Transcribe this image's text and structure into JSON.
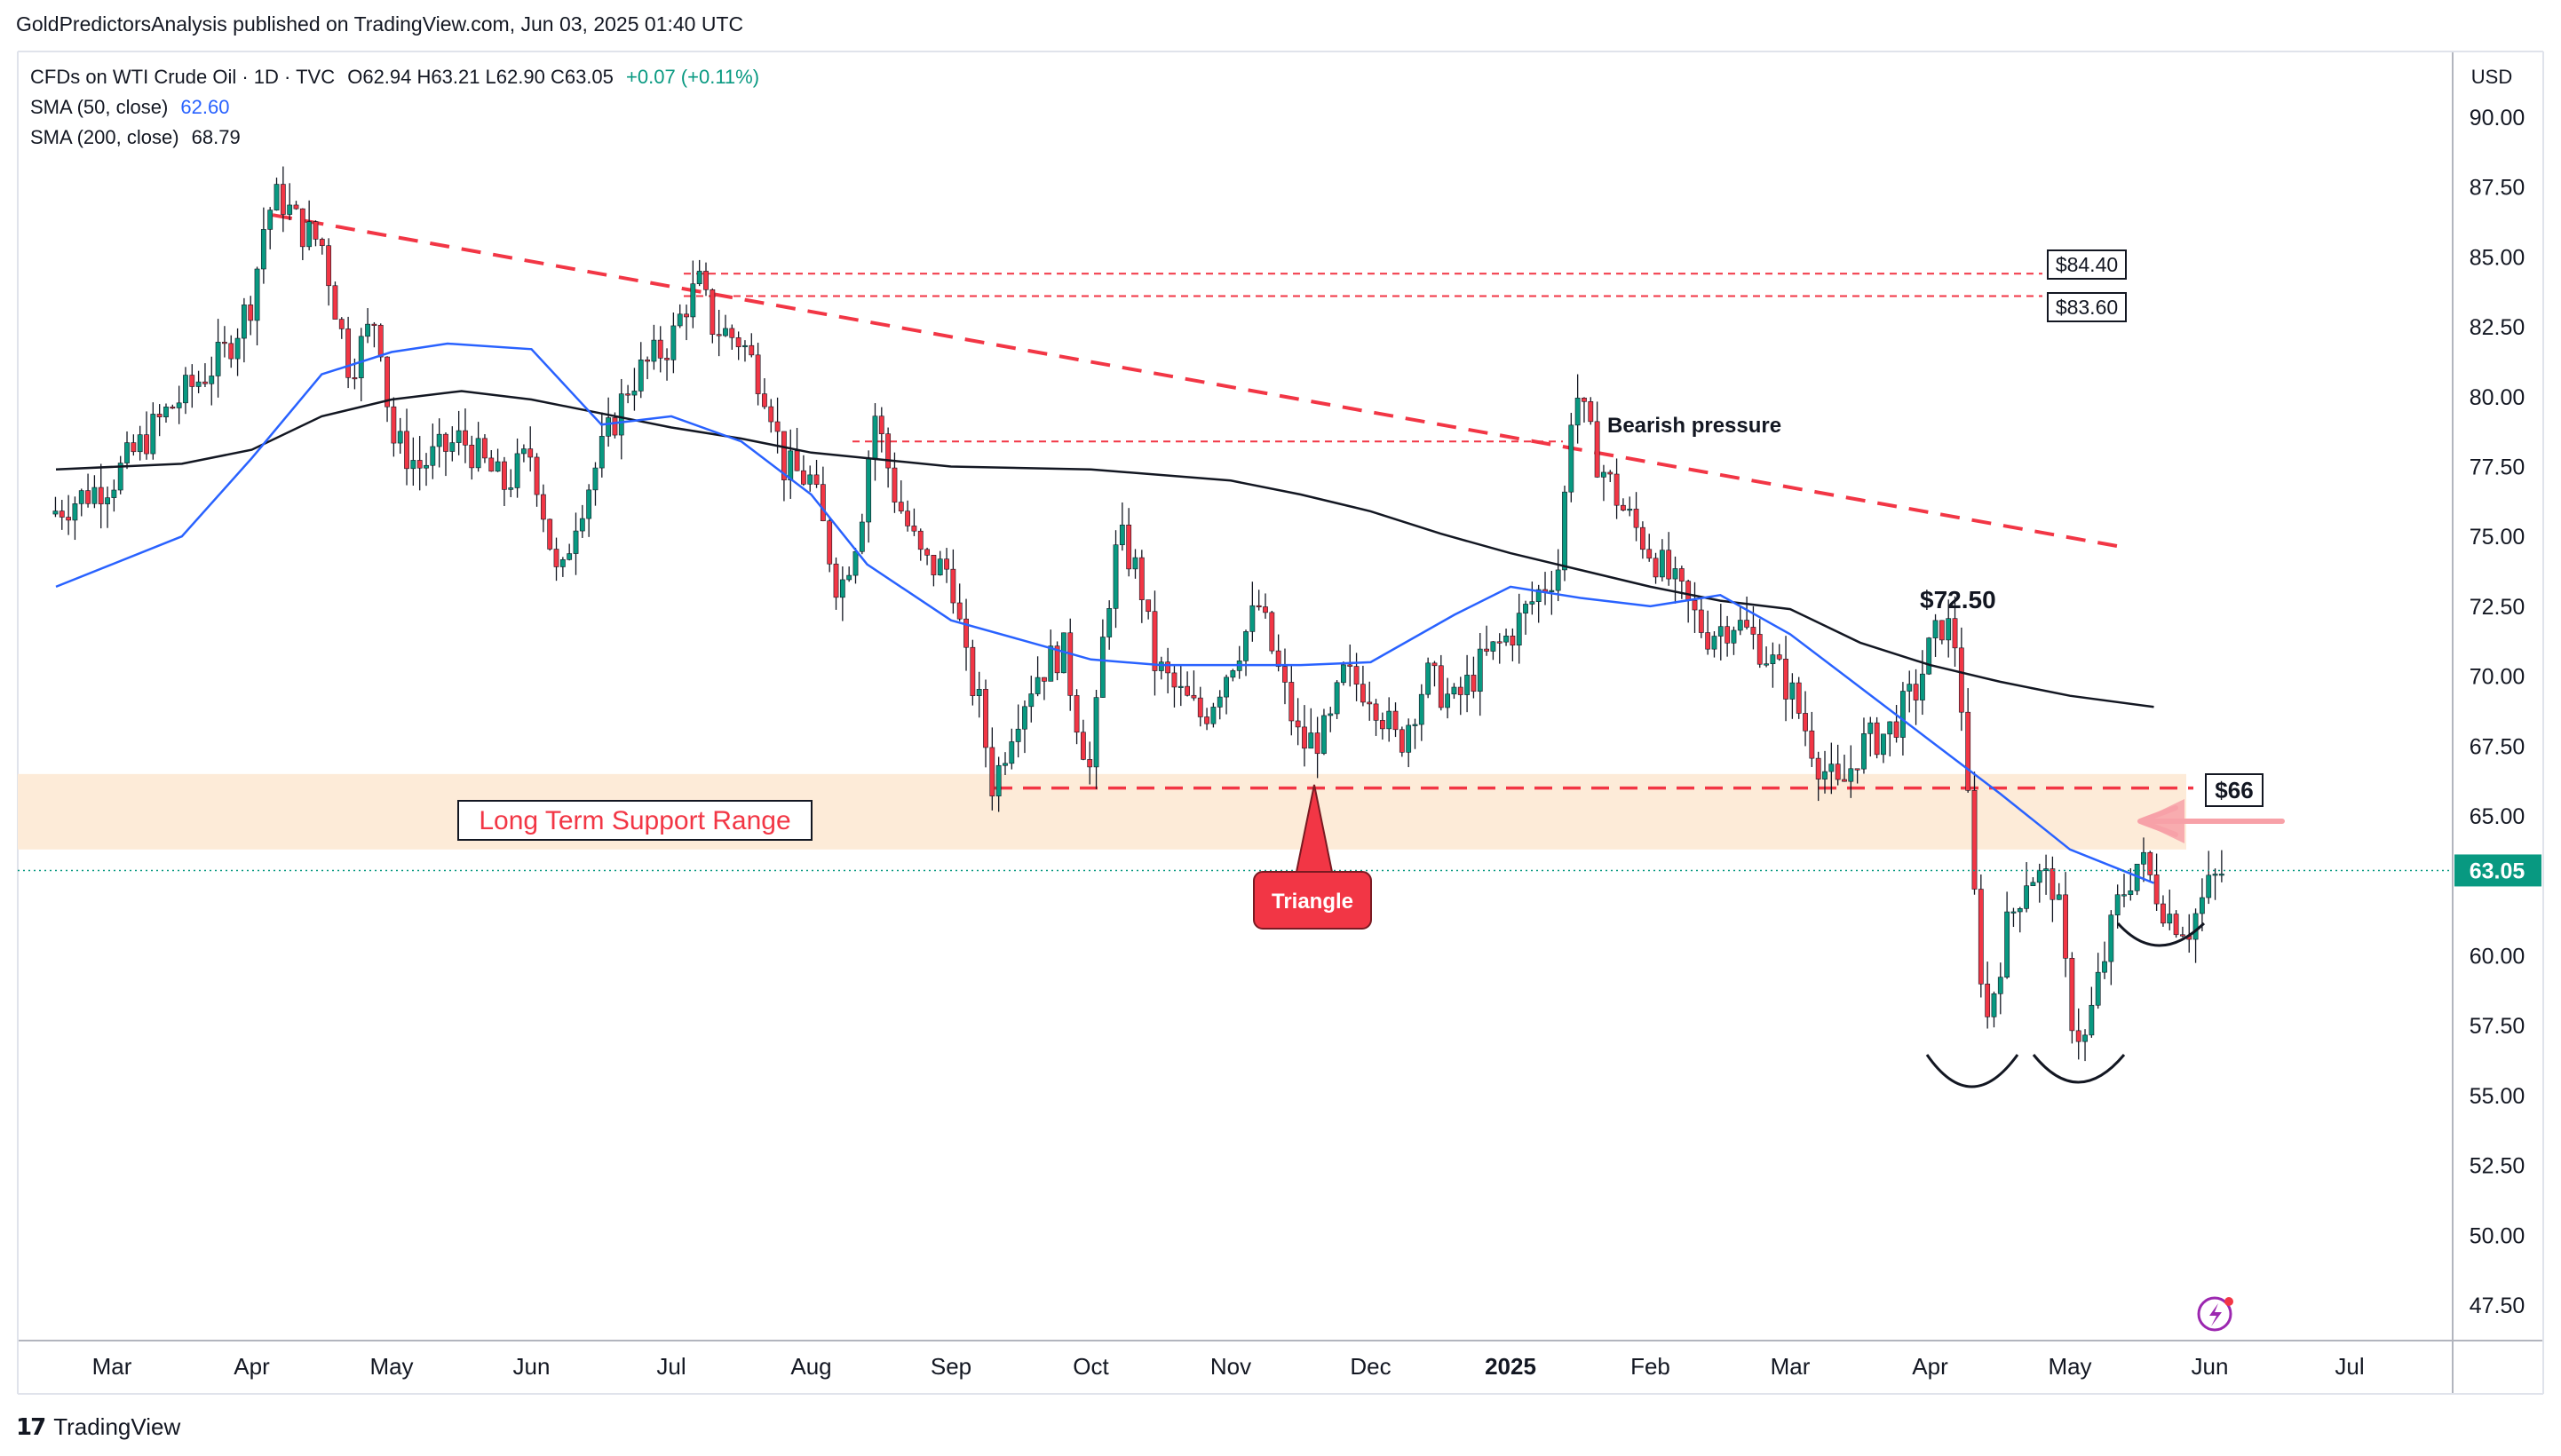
{
  "header": {
    "publisher_line": "GoldPredictorsAnalysis published on TradingView.com, Jun 03, 2025 01:40 UTC"
  },
  "legend": {
    "symbol": "CFDs on WTI Crude Oil · 1D · TVC",
    "ohlc": "O62.94  H63.21  L62.90  C63.05",
    "change": "+0.07 (+0.11%)",
    "sma50_label": "SMA (50, close)",
    "sma50_value": "62.60",
    "sma200_label": "SMA (200, close)",
    "sma200_value": "68.79"
  },
  "price_axis": {
    "currency": "USD",
    "last_price": "63.05",
    "ticks": [
      "90.00",
      "87.50",
      "85.00",
      "82.50",
      "80.00",
      "77.50",
      "75.00",
      "72.50",
      "70.00",
      "67.50",
      "65.00",
      "62.50",
      "60.00",
      "57.50",
      "55.00",
      "52.50",
      "50.00",
      "47.50"
    ]
  },
  "time_axis": {
    "labels": [
      "Mar",
      "Apr",
      "May",
      "Jun",
      "Jul",
      "Aug",
      "Sep",
      "Oct",
      "Nov",
      "Dec",
      "2025",
      "Feb",
      "Mar",
      "Apr",
      "May",
      "Jun",
      "Jul"
    ]
  },
  "annotations": {
    "support_range": "Long Term Support Range",
    "triangle": "Triangle",
    "bearish": "Bearish pressure",
    "level_7250": "$72.50",
    "level_8440": "$84.40",
    "level_8360": "$83.60",
    "level_66": "$66"
  },
  "colors": {
    "up": "#089981",
    "down": "#f23645",
    "sma50": "#2962ff",
    "sma200": "#131722",
    "trend_red": "#f23645",
    "support_band": "#fdebd8",
    "triangle_fill": "#f23645"
  },
  "footer": {
    "brand": "TradingView"
  },
  "chart_data": {
    "type": "candlestick",
    "symbol": "CFDs on WTI Crude Oil",
    "timeframe": "1D",
    "ylim": [
      46.5,
      91.0
    ],
    "last_close": 63.05,
    "x_unit": "months since Mar 1 2024",
    "series": [
      {
        "name": "SMA (50, close)",
        "values": [
          [
            -0.4,
            73.2
          ],
          [
            0.5,
            75.0
          ],
          [
            1.0,
            77.8
          ],
          [
            1.5,
            80.8
          ],
          [
            2.0,
            81.6
          ],
          [
            2.4,
            81.9
          ],
          [
            3.0,
            81.7
          ],
          [
            3.5,
            79.0
          ],
          [
            4.0,
            79.3
          ],
          [
            4.5,
            78.4
          ],
          [
            5.0,
            76.5
          ],
          [
            5.4,
            74.0
          ],
          [
            6.0,
            72.0
          ],
          [
            6.5,
            71.3
          ],
          [
            7.0,
            70.6
          ],
          [
            7.5,
            70.4
          ],
          [
            8.0,
            70.4
          ],
          [
            8.5,
            70.4
          ],
          [
            9.0,
            70.5
          ],
          [
            9.6,
            72.2
          ],
          [
            10.0,
            73.2
          ],
          [
            10.5,
            72.8
          ],
          [
            11.0,
            72.5
          ],
          [
            11.5,
            72.9
          ],
          [
            12.0,
            71.5
          ],
          [
            12.5,
            69.6
          ],
          [
            13.0,
            67.7
          ],
          [
            13.5,
            65.8
          ],
          [
            14.0,
            63.8
          ],
          [
            14.6,
            62.6
          ]
        ]
      },
      {
        "name": "SMA (200, close)",
        "values": [
          [
            -0.4,
            77.4
          ],
          [
            0.5,
            77.6
          ],
          [
            1.0,
            78.1
          ],
          [
            1.5,
            79.3
          ],
          [
            2.0,
            79.9
          ],
          [
            2.5,
            80.2
          ],
          [
            3.0,
            79.9
          ],
          [
            3.5,
            79.4
          ],
          [
            4.0,
            78.9
          ],
          [
            4.5,
            78.5
          ],
          [
            5.0,
            78.0
          ],
          [
            6.0,
            77.5
          ],
          [
            7.0,
            77.4
          ],
          [
            8.0,
            77.0
          ],
          [
            8.5,
            76.5
          ],
          [
            9.0,
            75.9
          ],
          [
            9.5,
            75.1
          ],
          [
            10.0,
            74.4
          ],
          [
            10.5,
            73.8
          ],
          [
            11.0,
            73.2
          ],
          [
            11.5,
            72.7
          ],
          [
            12.0,
            72.4
          ],
          [
            12.5,
            71.2
          ],
          [
            13.0,
            70.4
          ],
          [
            13.5,
            69.8
          ],
          [
            14.0,
            69.3
          ],
          [
            14.6,
            68.9
          ]
        ]
      },
      {
        "name": "",
        "values": [
          [
            -0.45,
            75.8
          ],
          [
            0.0,
            77.0
          ],
          [
            0.4,
            79.5
          ],
          [
            0.8,
            81.5
          ],
          [
            1.0,
            83.5
          ],
          [
            1.1,
            86.5
          ],
          [
            1.2,
            87.2
          ],
          [
            1.35,
            86.0
          ],
          [
            1.5,
            85.5
          ],
          [
            1.6,
            83.2
          ],
          [
            1.7,
            81.0
          ],
          [
            1.9,
            83.0
          ],
          [
            2.0,
            78.5
          ],
          [
            2.2,
            77.5
          ],
          [
            2.5,
            78.5
          ],
          [
            2.8,
            76.8
          ],
          [
            3.0,
            78.0
          ],
          [
            3.1,
            75.6
          ],
          [
            3.2,
            73.0
          ],
          [
            3.3,
            75.5
          ],
          [
            3.5,
            78.0
          ],
          [
            3.7,
            80.5
          ],
          [
            4.0,
            82.0
          ],
          [
            4.1,
            83.3
          ],
          [
            4.2,
            84.0
          ],
          [
            4.3,
            82.5
          ],
          [
            4.5,
            82.0
          ],
          [
            4.7,
            80.0
          ],
          [
            4.8,
            77.5
          ],
          [
            5.0,
            77.0
          ],
          [
            5.1,
            75.0
          ],
          [
            5.2,
            73.0
          ],
          [
            5.35,
            75.5
          ],
          [
            5.45,
            79.5
          ],
          [
            5.6,
            76.5
          ],
          [
            5.8,
            74.0
          ],
          [
            6.0,
            73.8
          ],
          [
            6.1,
            70.5
          ],
          [
            6.2,
            69.0
          ],
          [
            6.3,
            66.0
          ],
          [
            6.45,
            68.5
          ],
          [
            6.6,
            70.0
          ],
          [
            6.8,
            71.0
          ],
          [
            6.9,
            68.5
          ],
          [
            7.0,
            66.5
          ],
          [
            7.1,
            72.0
          ],
          [
            7.2,
            75.0
          ],
          [
            7.35,
            73.5
          ],
          [
            7.45,
            70.5
          ],
          [
            7.6,
            69.5
          ],
          [
            7.8,
            68.5
          ],
          [
            8.0,
            70.5
          ],
          [
            8.2,
            72.5
          ],
          [
            8.35,
            70.0
          ],
          [
            8.5,
            67.5
          ],
          [
            8.7,
            68.0
          ],
          [
            8.8,
            70.0
          ],
          [
            9.0,
            69.5
          ],
          [
            9.2,
            67.5
          ],
          [
            9.4,
            70.0
          ],
          [
            9.6,
            69.0
          ],
          [
            9.8,
            70.5
          ],
          [
            10.0,
            71.5
          ],
          [
            10.2,
            73.0
          ],
          [
            10.35,
            74.0
          ],
          [
            10.45,
            80.5
          ],
          [
            10.6,
            78.0
          ],
          [
            10.8,
            76.0
          ],
          [
            11.0,
            74.5
          ],
          [
            11.2,
            73.0
          ],
          [
            11.4,
            71.5
          ],
          [
            11.6,
            72.0
          ],
          [
            11.8,
            71.0
          ],
          [
            12.0,
            69.5
          ],
          [
            12.2,
            67.0
          ],
          [
            12.35,
            65.8
          ],
          [
            12.5,
            67.5
          ],
          [
            12.7,
            68.0
          ],
          [
            12.9,
            69.5
          ],
          [
            13.0,
            71.0
          ],
          [
            13.1,
            72.0
          ],
          [
            13.2,
            71.0
          ],
          [
            13.3,
            63.0
          ],
          [
            13.4,
            57.5
          ],
          [
            13.55,
            61.0
          ],
          [
            13.7,
            63.0
          ],
          [
            13.9,
            62.5
          ],
          [
            14.0,
            58.0
          ],
          [
            14.1,
            56.8
          ],
          [
            14.2,
            59.0
          ],
          [
            14.35,
            62.0
          ],
          [
            14.5,
            63.5
          ],
          [
            14.7,
            61.5
          ],
          [
            14.85,
            61.0
          ],
          [
            15.0,
            62.5
          ],
          [
            15.1,
            63.05
          ]
        ]
      }
    ],
    "horizontal_levels": [
      84.4,
      83.6,
      78.4,
      66.0
    ],
    "support_range": [
      63.8,
      66.5
    ],
    "trendline": [
      [
        1.15,
        86.5
      ],
      [
        14.4,
        74.6
      ]
    ],
    "time_labels": [
      "Mar",
      "Apr",
      "May",
      "Jun",
      "Jul",
      "Aug",
      "Sep",
      "Oct",
      "Nov",
      "Dec",
      "2025",
      "Feb",
      "Mar",
      "Apr",
      "May",
      "Jun",
      "Jul"
    ],
    "xlabel": "",
    "ylabel": "USD"
  }
}
